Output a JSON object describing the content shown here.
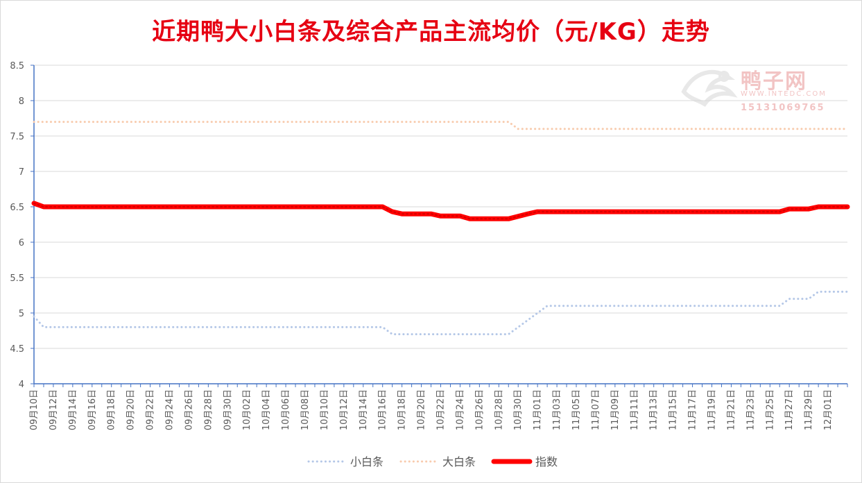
{
  "title": "近期鸭大小白条及综合产品主流均价（元/KG）走势",
  "watermark": {
    "name": "鸭子网",
    "url": "WWW.INTEDC.COM",
    "phone": "15131069765"
  },
  "chart_data": {
    "type": "line",
    "title": "近期鸭大小白条及综合产品主流均价（元/KG）走势",
    "ylim": [
      4,
      8.5
    ],
    "y_ticks": [
      "4",
      "4.5",
      "5",
      "5.5",
      "6",
      "6.5",
      "7",
      "7.5",
      "8",
      "8.5"
    ],
    "x_tick_labels": [
      "09月10日",
      "09月12日",
      "09月14日",
      "09月16日",
      "09月18日",
      "09月20日",
      "09月22日",
      "09月24日",
      "09月26日",
      "09月28日",
      "09月30日",
      "10月02日",
      "10月04日",
      "10月06日",
      "10月08日",
      "10月10日",
      "10月12日",
      "10月14日",
      "10月16日",
      "10月18日",
      "10月20日",
      "10月22日",
      "10月24日",
      "10月26日",
      "10月28日",
      "10月30日",
      "11月01日",
      "11月03日",
      "11月05日",
      "11月07日",
      "11月09日",
      "11月11日",
      "11月13日",
      "11月15日",
      "11月17日",
      "11月19日",
      "11月21日",
      "11月23日",
      "11月25日",
      "11月27日",
      "11月29日",
      "12月01日"
    ],
    "legend_position": "bottom",
    "series": [
      {
        "name": "小白条",
        "color": "#b4c7e7",
        "style": "dotted",
        "segments": [
          [
            0,
            4.95
          ],
          [
            1,
            4.8
          ],
          [
            36,
            4.8
          ],
          [
            37,
            4.7
          ],
          [
            49,
            4.7
          ],
          [
            53,
            5.1
          ],
          [
            77,
            5.1
          ],
          [
            78,
            5.2
          ],
          [
            80,
            5.2
          ],
          [
            81,
            5.3
          ],
          [
            84,
            5.3
          ]
        ]
      },
      {
        "name": "大白条",
        "color": "#f8cbad",
        "style": "dotted",
        "segments": [
          [
            0,
            7.7
          ],
          [
            49,
            7.7
          ],
          [
            50,
            7.6
          ],
          [
            84,
            7.6
          ]
        ]
      },
      {
        "name": "指数",
        "color": "#ff0000",
        "style": "thick",
        "segments": [
          [
            0,
            6.55
          ],
          [
            1,
            6.5
          ],
          [
            36,
            6.5
          ],
          [
            37,
            6.43
          ],
          [
            38,
            6.4
          ],
          [
            41,
            6.4
          ],
          [
            42,
            6.37
          ],
          [
            44,
            6.37
          ],
          [
            45,
            6.33
          ],
          [
            49,
            6.33
          ],
          [
            51,
            6.4
          ],
          [
            52,
            6.43
          ],
          [
            77,
            6.43
          ],
          [
            78,
            6.47
          ],
          [
            80,
            6.47
          ],
          [
            81,
            6.5
          ],
          [
            84,
            6.5
          ]
        ]
      }
    ]
  }
}
